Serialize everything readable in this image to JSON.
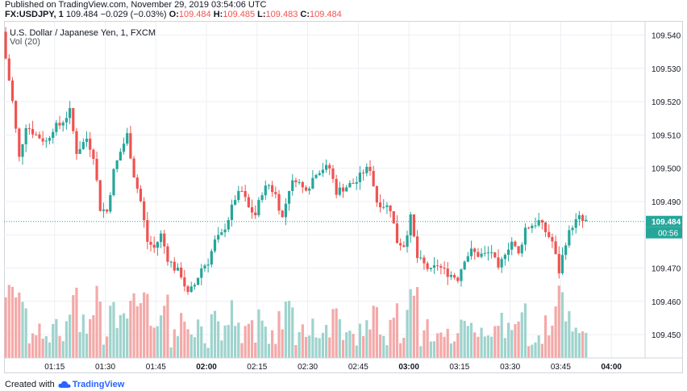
{
  "header": {
    "published": "Published on TradingView.com, November 29, 2019 03:54:06 UTC",
    "symbol": "FX:USDJPY, 1",
    "last": "109.484",
    "change": "−0.029 (−0.03%)",
    "o_label": "O:",
    "o_value": "109.484",
    "h_label": "H:",
    "h_value": "109.485",
    "l_label": "L:",
    "l_value": "109.483",
    "c_label": "C:",
    "c_value": "109.484"
  },
  "legend": {
    "title": "U.S. Dollar / Japanese Yen, 1, FXCM",
    "volume": "Vol (20)"
  },
  "footer": {
    "created_with": "Created with",
    "brand": "TradingView"
  },
  "colors": {
    "up": "#26a69a",
    "down": "#ef5350",
    "vol_up": "#9fd3cd",
    "vol_down": "#f3a9a8",
    "price_line": "#26a69a",
    "grid": "#eceff4"
  },
  "chart_data": {
    "type": "candlestick",
    "title": "U.S. Dollar / Japanese Yen, 1, FXCM",
    "ylim": [
      109.443,
      109.544
    ],
    "y_ticks": [
      "109.450",
      "109.460",
      "109.470",
      "109.480",
      "109.490",
      "109.500",
      "109.510",
      "109.520",
      "109.530",
      "109.540"
    ],
    "x_ticks": [
      "01:15",
      "01:30",
      "01:45",
      "02:00",
      "02:15",
      "02:30",
      "02:45",
      "03:00",
      "03:15",
      "03:30",
      "03:45",
      "04:00"
    ],
    "x_tick_minutes": [
      15,
      30,
      45,
      60,
      75,
      90,
      105,
      120,
      135,
      150,
      165,
      180
    ],
    "x_range_minutes": [
      0,
      190
    ],
    "current_price_label": "109.484",
    "countdown_label": "00:56",
    "current_price": 109.484,
    "keypoints": [
      [
        1,
        109.533
      ],
      [
        3,
        109.52
      ],
      [
        5,
        109.503
      ],
      [
        7,
        109.513
      ],
      [
        10,
        109.51
      ],
      [
        13,
        109.508
      ],
      [
        15,
        109.512
      ],
      [
        17,
        109.513
      ],
      [
        20,
        109.517
      ],
      [
        22,
        109.505
      ],
      [
        25,
        109.509
      ],
      [
        27,
        109.504
      ],
      [
        29,
        109.488
      ],
      [
        31,
        109.487
      ],
      [
        33,
        109.499
      ],
      [
        35,
        109.505
      ],
      [
        37,
        109.51
      ],
      [
        39,
        109.498
      ],
      [
        41,
        109.49
      ],
      [
        43,
        109.478
      ],
      [
        45,
        109.476
      ],
      [
        47,
        109.48
      ],
      [
        49,
        109.473
      ],
      [
        51,
        109.47
      ],
      [
        53,
        109.468
      ],
      [
        55,
        109.462
      ],
      [
        57,
        109.465
      ],
      [
        59,
        109.47
      ],
      [
        61,
        109.472
      ],
      [
        63,
        109.478
      ],
      [
        65,
        109.48
      ],
      [
        67,
        109.485
      ],
      [
        69,
        109.491
      ],
      [
        71,
        109.493
      ],
      [
        73,
        109.488
      ],
      [
        75,
        109.486
      ],
      [
        77,
        109.493
      ],
      [
        79,
        109.495
      ],
      [
        81,
        109.492
      ],
      [
        83,
        109.485
      ],
      [
        85,
        109.494
      ],
      [
        87,
        109.497
      ],
      [
        89,
        109.494
      ],
      [
        91,
        109.495
      ],
      [
        93,
        109.499
      ],
      [
        95,
        109.5
      ],
      [
        97,
        109.5
      ],
      [
        99,
        109.493
      ],
      [
        101,
        109.494
      ],
      [
        103,
        109.495
      ],
      [
        105,
        109.496
      ],
      [
        107,
        109.499
      ],
      [
        109,
        109.5
      ],
      [
        111,
        109.49
      ],
      [
        113,
        109.489
      ],
      [
        115,
        109.488
      ],
      [
        117,
        109.478
      ],
      [
        119,
        109.477
      ],
      [
        121,
        109.485
      ],
      [
        123,
        109.473
      ],
      [
        125,
        109.471
      ],
      [
        127,
        109.469
      ],
      [
        129,
        109.471
      ],
      [
        131,
        109.469
      ],
      [
        133,
        109.468
      ],
      [
        135,
        109.467
      ],
      [
        137,
        109.473
      ],
      [
        139,
        109.475
      ],
      [
        141,
        109.474
      ],
      [
        143,
        109.474
      ],
      [
        145,
        109.475
      ],
      [
        147,
        109.469
      ],
      [
        149,
        109.475
      ],
      [
        151,
        109.478
      ],
      [
        153,
        109.474
      ],
      [
        155,
        109.482
      ],
      [
        157,
        109.483
      ],
      [
        159,
        109.484
      ],
      [
        161,
        109.481
      ],
      [
        163,
        109.478
      ],
      [
        165,
        109.469
      ],
      [
        167,
        109.478
      ],
      [
        169,
        109.483
      ],
      [
        171,
        109.485
      ],
      [
        172,
        109.484
      ]
    ],
    "volume_ylim": [
      0,
      100
    ]
  }
}
